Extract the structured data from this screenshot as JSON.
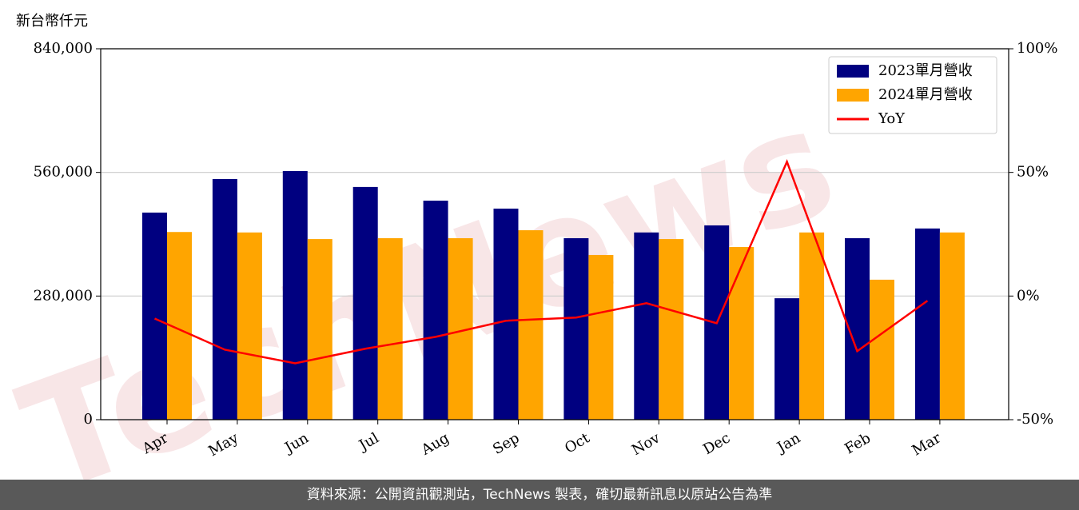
{
  "chart_data": {
    "type": "bar-line",
    "y_label": "新台幣仟元",
    "watermark": "TechNews",
    "footer": "資料來源：公開資訊觀測站，TechNews 製表，確切最新訊息以原站公告為準",
    "categories": [
      "Apr",
      "May",
      "Jun",
      "Jul",
      "Aug",
      "Sep",
      "Oct",
      "Nov",
      "Dec",
      "Jan",
      "Feb",
      "Mar"
    ],
    "series": [
      {
        "name": "2023單月營收",
        "color": "#000080",
        "type": "bar",
        "values": [
          469000,
          545000,
          563000,
          527000,
          496000,
          478000,
          411000,
          424000,
          440000,
          275000,
          411000,
          433000
        ]
      },
      {
        "name": "2024單月營收",
        "color": "#ffa500",
        "type": "bar",
        "values": [
          425000,
          424000,
          409000,
          411000,
          411000,
          429000,
          373000,
          409000,
          391000,
          424000,
          317000,
          424000
        ]
      },
      {
        "name": "YoY",
        "color": "#ff0000",
        "type": "line",
        "axis": "y2",
        "values": [
          -9.1,
          -21.7,
          -27.2,
          -21.3,
          -16.5,
          -10,
          -8.7,
          -2.9,
          -11,
          54.3,
          -22.3,
          -1.9
        ]
      }
    ],
    "ylim": [
      0,
      840000
    ],
    "yticks": [
      0,
      {
        "value": 280000,
        "label": "280,000"
      },
      {
        "value": 560000,
        "label": "560,000"
      },
      {
        "value": 840000,
        "label": "840,000"
      }
    ],
    "y2lim": [
      -50,
      100
    ],
    "y2ticks": [
      {
        "value": -50,
        "label": "-50%"
      },
      {
        "value": 0,
        "label": "0%"
      },
      {
        "value": 50,
        "label": "50%"
      },
      {
        "value": 100,
        "label": "100%"
      }
    ],
    "grid": true,
    "legend": "upper right"
  }
}
